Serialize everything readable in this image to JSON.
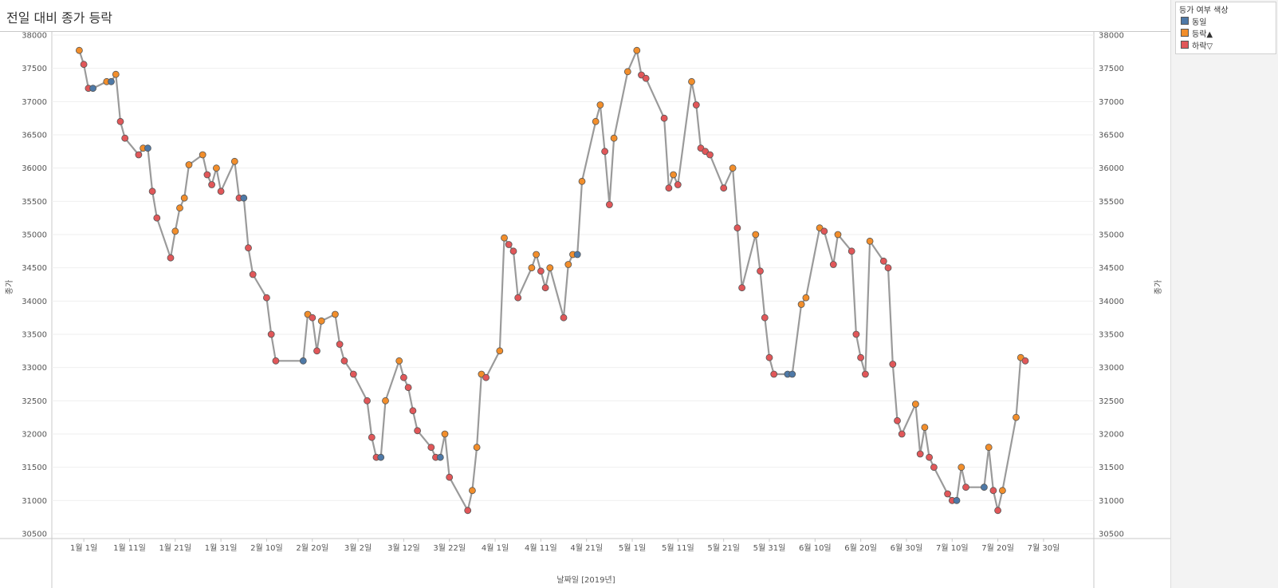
{
  "title": "전일 대비 종가 등락",
  "legend": {
    "title": "등가 여부 색상",
    "items": [
      {
        "label": "동일",
        "color": "#4e79a7"
      },
      {
        "label": "등락▲",
        "color": "#f28e2b"
      },
      {
        "label": "하락▽",
        "color": "#e15759"
      }
    ]
  },
  "chart_data": {
    "type": "line",
    "xlabel": "날짜일 [2019년]",
    "ylabel_left": "종가",
    "ylabel_right": "종가",
    "ylim": [
      30500,
      38000
    ],
    "y_ticks": [
      "30500",
      "31000",
      "31500",
      "32000",
      "32500",
      "33000",
      "33500",
      "34000",
      "34500",
      "35000",
      "35500",
      "36000",
      "36500",
      "37000",
      "37500",
      "38000"
    ],
    "x_ticks": [
      {
        "label": "1월 1일",
        "day": 0
      },
      {
        "label": "1월 11일",
        "day": 10
      },
      {
        "label": "1월 21일",
        "day": 20
      },
      {
        "label": "1월 31일",
        "day": 30
      },
      {
        "label": "2월 10일",
        "day": 40
      },
      {
        "label": "2월 20일",
        "day": 50
      },
      {
        "label": "3월 2일",
        "day": 60
      },
      {
        "label": "3월 12일",
        "day": 70
      },
      {
        "label": "3월 22일",
        "day": 80
      },
      {
        "label": "4월 1일",
        "day": 90
      },
      {
        "label": "4월 11일",
        "day": 100
      },
      {
        "label": "4월 21일",
        "day": 110
      },
      {
        "label": "5월 1일",
        "day": 120
      },
      {
        "label": "5월 11일",
        "day": 130
      },
      {
        "label": "5월 21일",
        "day": 140
      },
      {
        "label": "5월 31일",
        "day": 150
      },
      {
        "label": "6월 10일",
        "day": 160
      },
      {
        "label": "6월 20일",
        "day": 170
      },
      {
        "label": "6월 30일",
        "day": 180
      },
      {
        "label": "7월 10일",
        "day": 190
      },
      {
        "label": "7월 20일",
        "day": 200
      },
      {
        "label": "7월 30일",
        "day": 210
      }
    ],
    "xlim_days": [
      -7,
      221
    ],
    "line_color": "#9a9a9a",
    "points": [
      {
        "d": -1,
        "v": 37770,
        "s": "up"
      },
      {
        "d": 0,
        "v": 37560,
        "s": "down"
      },
      {
        "d": 1,
        "v": 37200,
        "s": "down"
      },
      {
        "d": 2,
        "v": 37200,
        "s": "same"
      },
      {
        "d": 5,
        "v": 37300,
        "s": "up"
      },
      {
        "d": 6,
        "v": 37300,
        "s": "same"
      },
      {
        "d": 7,
        "v": 37410,
        "s": "up"
      },
      {
        "d": 8,
        "v": 36700,
        "s": "down"
      },
      {
        "d": 9,
        "v": 36450,
        "s": "down"
      },
      {
        "d": 12,
        "v": 36200,
        "s": "down"
      },
      {
        "d": 13,
        "v": 36300,
        "s": "up"
      },
      {
        "d": 14,
        "v": 36300,
        "s": "same"
      },
      {
        "d": 15,
        "v": 35650,
        "s": "down"
      },
      {
        "d": 16,
        "v": 35250,
        "s": "down"
      },
      {
        "d": 19,
        "v": 34650,
        "s": "down"
      },
      {
        "d": 20,
        "v": 35050,
        "s": "up"
      },
      {
        "d": 21,
        "v": 35400,
        "s": "up"
      },
      {
        "d": 22,
        "v": 35550,
        "s": "up"
      },
      {
        "d": 23,
        "v": 36050,
        "s": "up"
      },
      {
        "d": 26,
        "v": 36200,
        "s": "up"
      },
      {
        "d": 27,
        "v": 35900,
        "s": "down"
      },
      {
        "d": 28,
        "v": 35750,
        "s": "down"
      },
      {
        "d": 29,
        "v": 36000,
        "s": "up"
      },
      {
        "d": 30,
        "v": 35650,
        "s": "down"
      },
      {
        "d": 33,
        "v": 36100,
        "s": "up"
      },
      {
        "d": 34,
        "v": 35550,
        "s": "down"
      },
      {
        "d": 35,
        "v": 35550,
        "s": "same"
      },
      {
        "d": 36,
        "v": 34800,
        "s": "down"
      },
      {
        "d": 37,
        "v": 34400,
        "s": "down"
      },
      {
        "d": 40,
        "v": 34050,
        "s": "down"
      },
      {
        "d": 41,
        "v": 33500,
        "s": "down"
      },
      {
        "d": 42,
        "v": 33100,
        "s": "down"
      },
      {
        "d": 48,
        "v": 33100,
        "s": "same"
      },
      {
        "d": 49,
        "v": 33800,
        "s": "up"
      },
      {
        "d": 50,
        "v": 33750,
        "s": "down"
      },
      {
        "d": 51,
        "v": 33250,
        "s": "down"
      },
      {
        "d": 52,
        "v": 33700,
        "s": "up"
      },
      {
        "d": 55,
        "v": 33800,
        "s": "up"
      },
      {
        "d": 56,
        "v": 33350,
        "s": "down"
      },
      {
        "d": 57,
        "v": 33100,
        "s": "down"
      },
      {
        "d": 59,
        "v": 32900,
        "s": "down"
      },
      {
        "d": 62,
        "v": 32500,
        "s": "down"
      },
      {
        "d": 63,
        "v": 31950,
        "s": "down"
      },
      {
        "d": 64,
        "v": 31650,
        "s": "down"
      },
      {
        "d": 65,
        "v": 31650,
        "s": "same"
      },
      {
        "d": 66,
        "v": 32500,
        "s": "up"
      },
      {
        "d": 69,
        "v": 33100,
        "s": "up"
      },
      {
        "d": 70,
        "v": 32850,
        "s": "down"
      },
      {
        "d": 71,
        "v": 32700,
        "s": "down"
      },
      {
        "d": 72,
        "v": 32350,
        "s": "down"
      },
      {
        "d": 73,
        "v": 32050,
        "s": "down"
      },
      {
        "d": 76,
        "v": 31800,
        "s": "down"
      },
      {
        "d": 77,
        "v": 31650,
        "s": "down"
      },
      {
        "d": 78,
        "v": 31650,
        "s": "same"
      },
      {
        "d": 79,
        "v": 32000,
        "s": "up"
      },
      {
        "d": 80,
        "v": 31350,
        "s": "down"
      },
      {
        "d": 84,
        "v": 30850,
        "s": "down"
      },
      {
        "d": 85,
        "v": 31150,
        "s": "up"
      },
      {
        "d": 86,
        "v": 31800,
        "s": "up"
      },
      {
        "d": 87,
        "v": 32900,
        "s": "up"
      },
      {
        "d": 88,
        "v": 32850,
        "s": "down"
      },
      {
        "d": 91,
        "v": 33250,
        "s": "up"
      },
      {
        "d": 92,
        "v": 34950,
        "s": "up"
      },
      {
        "d": 93,
        "v": 34850,
        "s": "down"
      },
      {
        "d": 94,
        "v": 34750,
        "s": "down"
      },
      {
        "d": 95,
        "v": 34050,
        "s": "down"
      },
      {
        "d": 98,
        "v": 34500,
        "s": "up"
      },
      {
        "d": 99,
        "v": 34700,
        "s": "up"
      },
      {
        "d": 100,
        "v": 34450,
        "s": "down"
      },
      {
        "d": 101,
        "v": 34200,
        "s": "down"
      },
      {
        "d": 102,
        "v": 34500,
        "s": "up"
      },
      {
        "d": 105,
        "v": 33750,
        "s": "down"
      },
      {
        "d": 106,
        "v": 34550,
        "s": "up"
      },
      {
        "d": 107,
        "v": 34700,
        "s": "up"
      },
      {
        "d": 108,
        "v": 34700,
        "s": "same"
      },
      {
        "d": 109,
        "v": 35800,
        "s": "up"
      },
      {
        "d": 112,
        "v": 36700,
        "s": "up"
      },
      {
        "d": 113,
        "v": 36950,
        "s": "up"
      },
      {
        "d": 114,
        "v": 36250,
        "s": "down"
      },
      {
        "d": 115,
        "v": 35450,
        "s": "down"
      },
      {
        "d": 116,
        "v": 36450,
        "s": "up"
      },
      {
        "d": 119,
        "v": 37450,
        "s": "up"
      },
      {
        "d": 121,
        "v": 37770,
        "s": "up"
      },
      {
        "d": 122,
        "v": 37400,
        "s": "down"
      },
      {
        "d": 123,
        "v": 37350,
        "s": "down"
      },
      {
        "d": 127,
        "v": 36750,
        "s": "down"
      },
      {
        "d": 128,
        "v": 35700,
        "s": "down"
      },
      {
        "d": 129,
        "v": 35900,
        "s": "up"
      },
      {
        "d": 130,
        "v": 35750,
        "s": "down"
      },
      {
        "d": 133,
        "v": 37300,
        "s": "up"
      },
      {
        "d": 134,
        "v": 36950,
        "s": "down"
      },
      {
        "d": 135,
        "v": 36300,
        "s": "down"
      },
      {
        "d": 136,
        "v": 36250,
        "s": "down"
      },
      {
        "d": 137,
        "v": 36200,
        "s": "down"
      },
      {
        "d": 140,
        "v": 35700,
        "s": "down"
      },
      {
        "d": 142,
        "v": 36000,
        "s": "up"
      },
      {
        "d": 143,
        "v": 35100,
        "s": "down"
      },
      {
        "d": 144,
        "v": 34200,
        "s": "down"
      },
      {
        "d": 147,
        "v": 35000,
        "s": "up"
      },
      {
        "d": 148,
        "v": 34450,
        "s": "down"
      },
      {
        "d": 149,
        "v": 33750,
        "s": "down"
      },
      {
        "d": 150,
        "v": 33150,
        "s": "down"
      },
      {
        "d": 151,
        "v": 32900,
        "s": "down"
      },
      {
        "d": 154,
        "v": 32900,
        "s": "same"
      },
      {
        "d": 155,
        "v": 32900,
        "s": "same"
      },
      {
        "d": 157,
        "v": 33950,
        "s": "up"
      },
      {
        "d": 158,
        "v": 34050,
        "s": "up"
      },
      {
        "d": 161,
        "v": 35100,
        "s": "up"
      },
      {
        "d": 162,
        "v": 35050,
        "s": "down"
      },
      {
        "d": 164,
        "v": 34550,
        "s": "down"
      },
      {
        "d": 165,
        "v": 35000,
        "s": "up"
      },
      {
        "d": 168,
        "v": 34750,
        "s": "down"
      },
      {
        "d": 169,
        "v": 33500,
        "s": "down"
      },
      {
        "d": 170,
        "v": 33150,
        "s": "down"
      },
      {
        "d": 171,
        "v": 32900,
        "s": "down"
      },
      {
        "d": 172,
        "v": 34900,
        "s": "up"
      },
      {
        "d": 175,
        "v": 34600,
        "s": "down"
      },
      {
        "d": 176,
        "v": 34500,
        "s": "down"
      },
      {
        "d": 177,
        "v": 33050,
        "s": "down"
      },
      {
        "d": 178,
        "v": 32200,
        "s": "down"
      },
      {
        "d": 179,
        "v": 32000,
        "s": "down"
      },
      {
        "d": 182,
        "v": 32450,
        "s": "up"
      },
      {
        "d": 183,
        "v": 31700,
        "s": "down"
      },
      {
        "d": 184,
        "v": 32100,
        "s": "up"
      },
      {
        "d": 185,
        "v": 31650,
        "s": "down"
      },
      {
        "d": 186,
        "v": 31500,
        "s": "down"
      },
      {
        "d": 189,
        "v": 31100,
        "s": "down"
      },
      {
        "d": 190,
        "v": 31000,
        "s": "down"
      },
      {
        "d": 191,
        "v": 31000,
        "s": "same"
      },
      {
        "d": 192,
        "v": 31500,
        "s": "up"
      },
      {
        "d": 193,
        "v": 31200,
        "s": "down"
      },
      {
        "d": 197,
        "v": 31200,
        "s": "same"
      },
      {
        "d": 198,
        "v": 31800,
        "s": "up"
      },
      {
        "d": 199,
        "v": 31150,
        "s": "down"
      },
      {
        "d": 200,
        "v": 30850,
        "s": "down"
      },
      {
        "d": 201,
        "v": 31150,
        "s": "up"
      },
      {
        "d": 204,
        "v": 32250,
        "s": "up"
      },
      {
        "d": 205,
        "v": 33150,
        "s": "up"
      },
      {
        "d": 206,
        "v": 33100,
        "s": "down"
      }
    ],
    "status_colors": {
      "same": "#4e79a7",
      "up": "#f28e2b",
      "down": "#e15759"
    }
  }
}
